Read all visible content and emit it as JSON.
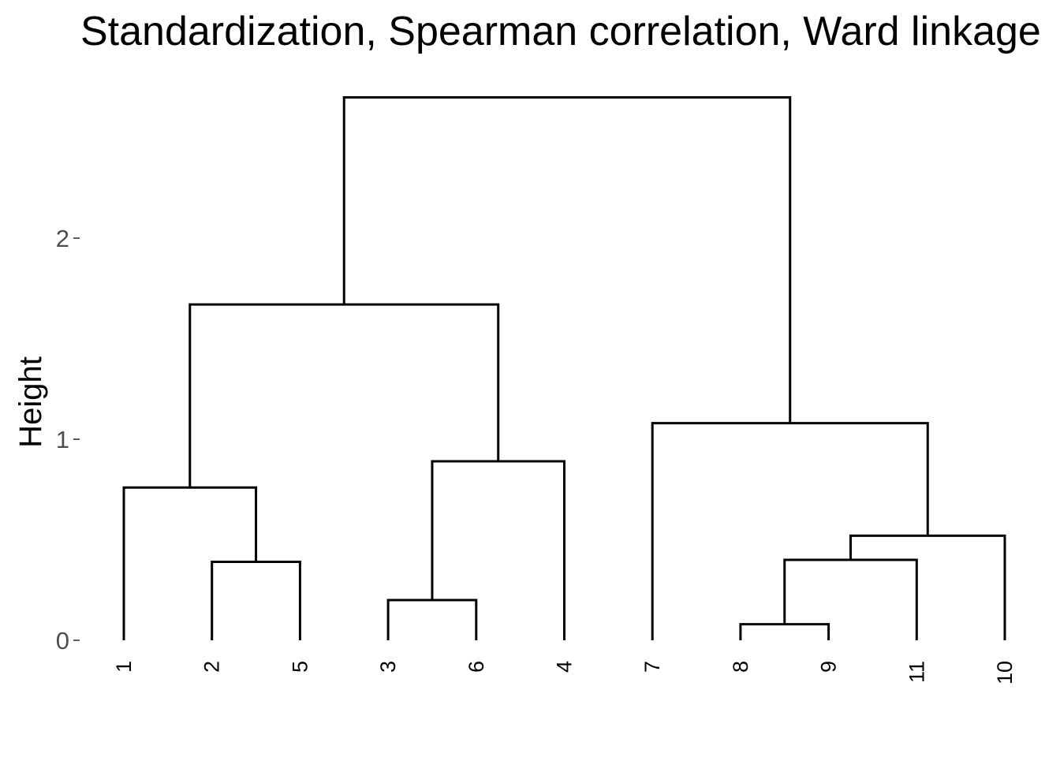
{
  "chart_data": {
    "type": "dendrogram",
    "title": "Standardization, Spearman correlation, Ward linkage",
    "ylabel": "Height",
    "xlabel": "",
    "ylim": [
      0,
      2.7
    ],
    "y_ticks": [
      0,
      1,
      2
    ],
    "y_tick_labels": [
      "0",
      "1",
      "2"
    ],
    "grid": false,
    "leaf_order": [
      "1",
      "2",
      "5",
      "3",
      "6",
      "4",
      "7",
      "8",
      "9",
      "11",
      "10"
    ],
    "merges": [
      {
        "id": "m1",
        "left": "8",
        "right": "9",
        "height": 0.08
      },
      {
        "id": "m2",
        "left": "3",
        "right": "6",
        "height": 0.2
      },
      {
        "id": "m3",
        "left": "2",
        "right": "5",
        "height": 0.39
      },
      {
        "id": "m4",
        "left": "m1",
        "right": "11",
        "height": 0.4
      },
      {
        "id": "m5",
        "left": "m4",
        "right": "10",
        "height": 0.52
      },
      {
        "id": "m6",
        "left": "1",
        "right": "m3",
        "height": 0.76
      },
      {
        "id": "m7",
        "left": "m2",
        "right": "4",
        "height": 0.89
      },
      {
        "id": "m8",
        "left": "7",
        "right": "m5",
        "height": 1.08
      },
      {
        "id": "m9",
        "left": "m6",
        "right": "m7",
        "height": 1.67
      },
      {
        "id": "m10",
        "left": "m9",
        "right": "m8",
        "height": 2.7
      }
    ],
    "colors": {
      "lines": "#000000",
      "tick_text": "#4d4d4d"
    }
  }
}
